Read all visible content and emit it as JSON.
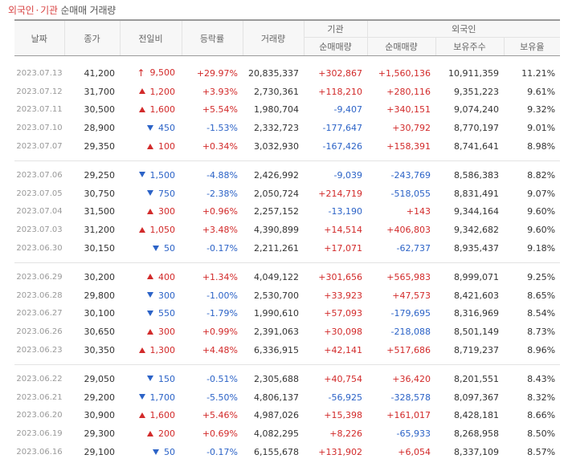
{
  "title": {
    "foreign": "외국인",
    "separator": "·",
    "institution": "기관",
    "rest": "순매매 거래량"
  },
  "headers": {
    "date": "날짜",
    "close": "종가",
    "change": "전일비",
    "rate": "등락률",
    "volume": "거래량",
    "institution": "기관",
    "inst_net": "순매매량",
    "foreign": "외국인",
    "foreign_net": "순매매량",
    "foreign_hold": "보유주수",
    "foreign_ratio": "보유율"
  },
  "colors": {
    "up": "#d22a2a",
    "down": "#2c63c7"
  },
  "groups": [
    [
      {
        "date": "2023.07.13",
        "close": "41,200",
        "dir": "limit",
        "change": "9,500",
        "rate": "+29.97%",
        "volume": "20,835,337",
        "inst": "+302,867",
        "foreign": "+1,560,136",
        "hold": "10,911,359",
        "ratio": "11.21%"
      },
      {
        "date": "2023.07.12",
        "close": "31,700",
        "dir": "up",
        "change": "1,200",
        "rate": "+3.93%",
        "volume": "2,730,361",
        "inst": "+118,210",
        "foreign": "+280,116",
        "hold": "9,351,223",
        "ratio": "9.61%"
      },
      {
        "date": "2023.07.11",
        "close": "30,500",
        "dir": "up",
        "change": "1,600",
        "rate": "+5.54%",
        "volume": "1,980,704",
        "inst": "-9,407",
        "foreign": "+340,151",
        "hold": "9,074,240",
        "ratio": "9.32%"
      },
      {
        "date": "2023.07.10",
        "close": "28,900",
        "dir": "down",
        "change": "450",
        "rate": "-1.53%",
        "volume": "2,332,723",
        "inst": "-177,647",
        "foreign": "+30,792",
        "hold": "8,770,197",
        "ratio": "9.01%"
      },
      {
        "date": "2023.07.07",
        "close": "29,350",
        "dir": "up",
        "change": "100",
        "rate": "+0.34%",
        "volume": "3,032,930",
        "inst": "-167,426",
        "foreign": "+158,391",
        "hold": "8,741,641",
        "ratio": "8.98%"
      }
    ],
    [
      {
        "date": "2023.07.06",
        "close": "29,250",
        "dir": "down",
        "change": "1,500",
        "rate": "-4.88%",
        "volume": "2,426,992",
        "inst": "-9,039",
        "foreign": "-243,769",
        "hold": "8,586,383",
        "ratio": "8.82%"
      },
      {
        "date": "2023.07.05",
        "close": "30,750",
        "dir": "down",
        "change": "750",
        "rate": "-2.38%",
        "volume": "2,050,724",
        "inst": "+214,719",
        "foreign": "-518,055",
        "hold": "8,831,491",
        "ratio": "9.07%"
      },
      {
        "date": "2023.07.04",
        "close": "31,500",
        "dir": "up",
        "change": "300",
        "rate": "+0.96%",
        "volume": "2,257,152",
        "inst": "-13,190",
        "foreign": "+143",
        "hold": "9,344,164",
        "ratio": "9.60%"
      },
      {
        "date": "2023.07.03",
        "close": "31,200",
        "dir": "up",
        "change": "1,050",
        "rate": "+3.48%",
        "volume": "4,390,899",
        "inst": "+14,514",
        "foreign": "+406,803",
        "hold": "9,342,682",
        "ratio": "9.60%"
      },
      {
        "date": "2023.06.30",
        "close": "30,150",
        "dir": "down",
        "change": "50",
        "rate": "-0.17%",
        "volume": "2,211,261",
        "inst": "+17,071",
        "foreign": "-62,737",
        "hold": "8,935,437",
        "ratio": "9.18%"
      }
    ],
    [
      {
        "date": "2023.06.29",
        "close": "30,200",
        "dir": "up",
        "change": "400",
        "rate": "+1.34%",
        "volume": "4,049,122",
        "inst": "+301,656",
        "foreign": "+565,983",
        "hold": "8,999,071",
        "ratio": "9.25%"
      },
      {
        "date": "2023.06.28",
        "close": "29,800",
        "dir": "down",
        "change": "300",
        "rate": "-1.00%",
        "volume": "2,530,700",
        "inst": "+33,923",
        "foreign": "+47,573",
        "hold": "8,421,603",
        "ratio": "8.65%"
      },
      {
        "date": "2023.06.27",
        "close": "30,100",
        "dir": "down",
        "change": "550",
        "rate": "-1.79%",
        "volume": "1,990,610",
        "inst": "+57,093",
        "foreign": "-179,695",
        "hold": "8,316,969",
        "ratio": "8.54%"
      },
      {
        "date": "2023.06.26",
        "close": "30,650",
        "dir": "up",
        "change": "300",
        "rate": "+0.99%",
        "volume": "2,391,063",
        "inst": "+30,098",
        "foreign": "-218,088",
        "hold": "8,501,149",
        "ratio": "8.73%"
      },
      {
        "date": "2023.06.23",
        "close": "30,350",
        "dir": "up",
        "change": "1,300",
        "rate": "+4.48%",
        "volume": "6,336,915",
        "inst": "+42,141",
        "foreign": "+517,686",
        "hold": "8,719,237",
        "ratio": "8.96%"
      }
    ],
    [
      {
        "date": "2023.06.22",
        "close": "29,050",
        "dir": "down",
        "change": "150",
        "rate": "-0.51%",
        "volume": "2,305,688",
        "inst": "+40,754",
        "foreign": "+36,420",
        "hold": "8,201,551",
        "ratio": "8.43%"
      },
      {
        "date": "2023.06.21",
        "close": "29,200",
        "dir": "down",
        "change": "1,700",
        "rate": "-5.50%",
        "volume": "4,806,137",
        "inst": "-56,925",
        "foreign": "-328,578",
        "hold": "8,097,367",
        "ratio": "8.32%"
      },
      {
        "date": "2023.06.20",
        "close": "30,900",
        "dir": "up",
        "change": "1,600",
        "rate": "+5.46%",
        "volume": "4,987,026",
        "inst": "+15,398",
        "foreign": "+161,017",
        "hold": "8,428,181",
        "ratio": "8.66%"
      },
      {
        "date": "2023.06.19",
        "close": "29,300",
        "dir": "up",
        "change": "200",
        "rate": "+0.69%",
        "volume": "4,082,295",
        "inst": "+8,226",
        "foreign": "-65,933",
        "hold": "8,268,958",
        "ratio": "8.50%"
      },
      {
        "date": "2023.06.16",
        "close": "29,100",
        "dir": "down",
        "change": "50",
        "rate": "-0.17%",
        "volume": "6,155,678",
        "inst": "+131,902",
        "foreign": "+6,054",
        "hold": "8,337,109",
        "ratio": "8.57%"
      }
    ]
  ]
}
